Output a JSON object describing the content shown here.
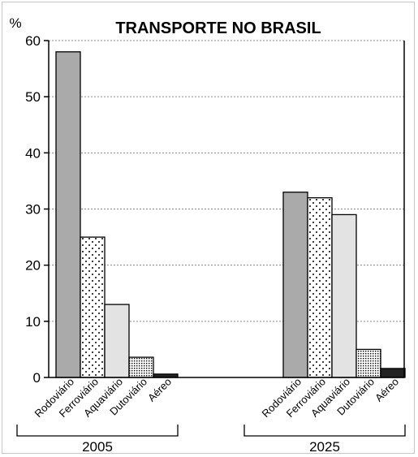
{
  "chart_data": {
    "type": "bar",
    "title": "TRANSPORTE NO BRASIL",
    "ylabel": "%",
    "ylim": [
      0,
      60
    ],
    "yticks": [
      "0",
      "10",
      "20",
      "30",
      "40",
      "50",
      "60"
    ],
    "grid": "horizontal dotted",
    "categories": [
      "Rodoviário",
      "Ferroviário",
      "Aquaviário",
      "Dutoviário",
      "Aéreo"
    ],
    "groups": [
      {
        "name": "2005",
        "values": [
          58,
          25,
          13,
          3.6,
          0.6
        ]
      },
      {
        "name": "2025",
        "values": [
          33,
          32,
          29,
          5,
          1.6
        ]
      }
    ],
    "styles": [
      {
        "fill": "#aaaaaa",
        "pattern": "solid"
      },
      {
        "fill": "#ffffff",
        "pattern": "dots-sparse"
      },
      {
        "fill": "#e3e3e3",
        "pattern": "solid"
      },
      {
        "fill": "#ffffff",
        "pattern": "dots-dense"
      },
      {
        "fill": "#222222",
        "pattern": "solid"
      }
    ]
  }
}
